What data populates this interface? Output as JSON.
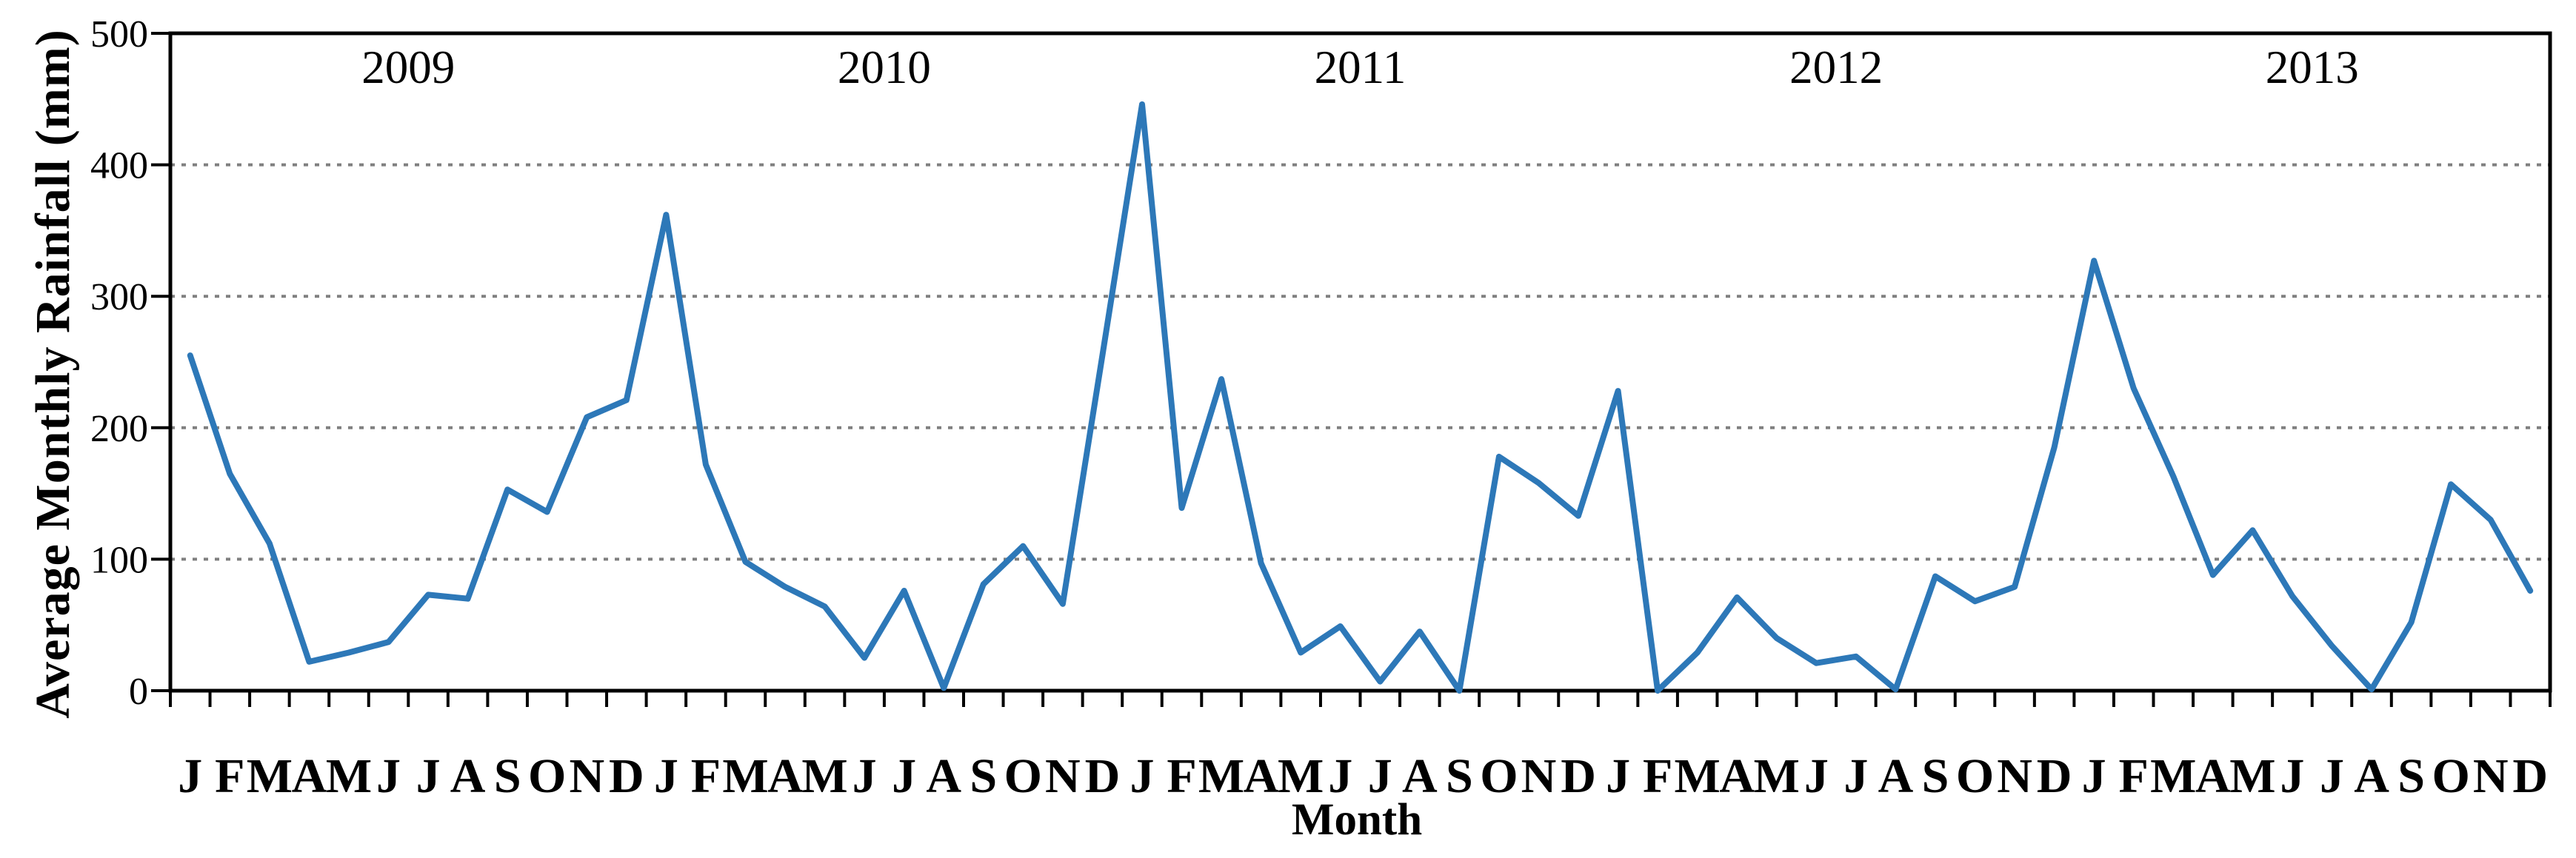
{
  "chart_data": {
    "type": "line",
    "title": "",
    "xlabel": "Month",
    "ylabel": "Average Monthly Rainfall (mm)",
    "ylim": [
      0,
      500
    ],
    "yticks": [
      0,
      100,
      200,
      300,
      400,
      500
    ],
    "grid": {
      "style": "dotted",
      "horizontal_at": [
        100,
        200,
        300,
        400
      ],
      "color": "#808080"
    },
    "legend_position": "none",
    "axis_color": "#000000",
    "background_color": "#ffffff",
    "x_month_letters": [
      "J",
      "F",
      "M",
      "A",
      "M",
      "J",
      "J",
      "A",
      "S",
      "O",
      "N",
      "D"
    ],
    "years": [
      "2009",
      "2010",
      "2011",
      "2012",
      "2013"
    ],
    "series": [
      {
        "name": "Average Monthly Rainfall (mm)",
        "color": "#2d78b8",
        "values_by_year": {
          "2009": [
            255,
            165,
            112,
            22,
            29,
            37,
            73,
            70,
            153,
            136,
            208,
            221
          ],
          "2010": [
            362,
            172,
            98,
            79,
            64,
            25,
            76,
            2,
            81,
            110,
            66,
            255
          ],
          "2011": [
            446,
            139,
            237,
            97,
            29,
            49,
            7,
            45,
            0,
            178,
            158,
            133
          ],
          "2012": [
            228,
            0,
            29,
            71,
            40,
            21,
            26,
            1,
            87,
            68,
            79,
            185
          ],
          "2013": [
            327,
            230,
            163,
            88,
            122,
            72,
            34,
            1,
            52,
            157,
            130,
            76
          ]
        }
      }
    ]
  }
}
